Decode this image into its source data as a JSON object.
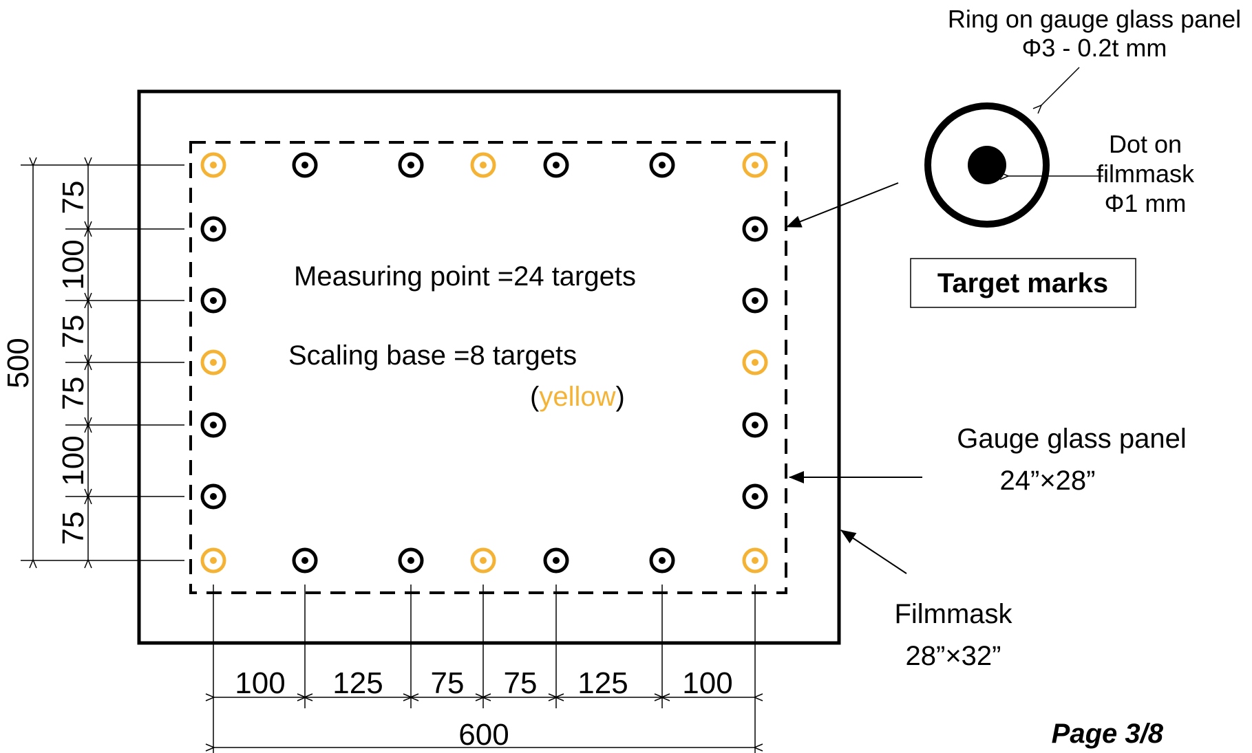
{
  "colors": {
    "scaling_target": "#f5b335",
    "measuring_target": "#000000",
    "line": "#000000"
  },
  "center_text": {
    "measuring": "Measuring point  =24 targets",
    "scaling": "Scaling base  =8 targets",
    "paren_open": "(",
    "yellow_word": "yellow",
    "paren_close": ")"
  },
  "ring_label": {
    "line1": "Ring on gauge glass panel",
    "line2": "Φ3  - 0.2t mm"
  },
  "dot_label": {
    "line1": "Dot on",
    "line2": "filmmask",
    "line3": "Φ1 mm"
  },
  "target_marks_label": "Target marks",
  "gauge_label": {
    "line1": "Gauge glass panel",
    "line2": "24”×28”"
  },
  "filmmask_label": {
    "line1": "Filmmask",
    "line2": "28”×32”"
  },
  "page_label": "Page 3/8",
  "horizontal_dims": [
    "100",
    "125",
    "75",
    "75",
    "125",
    "100"
  ],
  "horizontal_total": "600",
  "vertical_dims": [
    "75",
    "100",
    "75",
    "75",
    "100",
    "75"
  ],
  "vertical_total": "500"
}
